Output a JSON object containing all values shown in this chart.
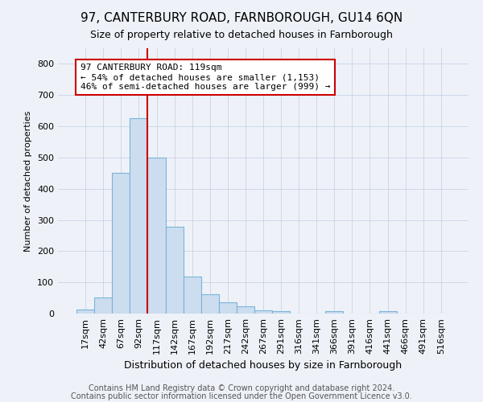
{
  "title1": "97, CANTERBURY ROAD, FARNBOROUGH, GU14 6QN",
  "title2": "Size of property relative to detached houses in Farnborough",
  "xlabel": "Distribution of detached houses by size in Farnborough",
  "ylabel": "Number of detached properties",
  "footer1": "Contains HM Land Registry data © Crown copyright and database right 2024.",
  "footer2": "Contains public sector information licensed under the Open Government Licence v3.0.",
  "bin_labels": [
    "17sqm",
    "42sqm",
    "67sqm",
    "92sqm",
    "117sqm",
    "142sqm",
    "167sqm",
    "192sqm",
    "217sqm",
    "242sqm",
    "267sqm",
    "291sqm",
    "316sqm",
    "341sqm",
    "366sqm",
    "391sqm",
    "416sqm",
    "441sqm",
    "466sqm",
    "491sqm",
    "516sqm"
  ],
  "bar_heights": [
    12,
    52,
    450,
    625,
    500,
    278,
    118,
    63,
    35,
    22,
    10,
    7,
    0,
    0,
    7,
    0,
    0,
    7,
    0,
    0,
    0
  ],
  "bar_color": "#ccddf0",
  "bar_edge_color": "#7ab4d8",
  "vline_x_index": 3,
  "vline_color": "#cc0000",
  "ylim": [
    0,
    850
  ],
  "yticks": [
    0,
    100,
    200,
    300,
    400,
    500,
    600,
    700,
    800
  ],
  "annotation_text": "97 CANTERBURY ROAD: 119sqm\n← 54% of detached houses are smaller (1,153)\n46% of semi-detached houses are larger (999) →",
  "annotation_box_facecolor": "#ffffff",
  "annotation_box_edgecolor": "#cc0000",
  "grid_color": "#c8d4e8",
  "background_color": "#eef2f8",
  "title1_fontsize": 11,
  "title2_fontsize": 9,
  "xlabel_fontsize": 9,
  "ylabel_fontsize": 8,
  "tick_fontsize": 8,
  "footer_fontsize": 7,
  "footer_color": "#555555"
}
